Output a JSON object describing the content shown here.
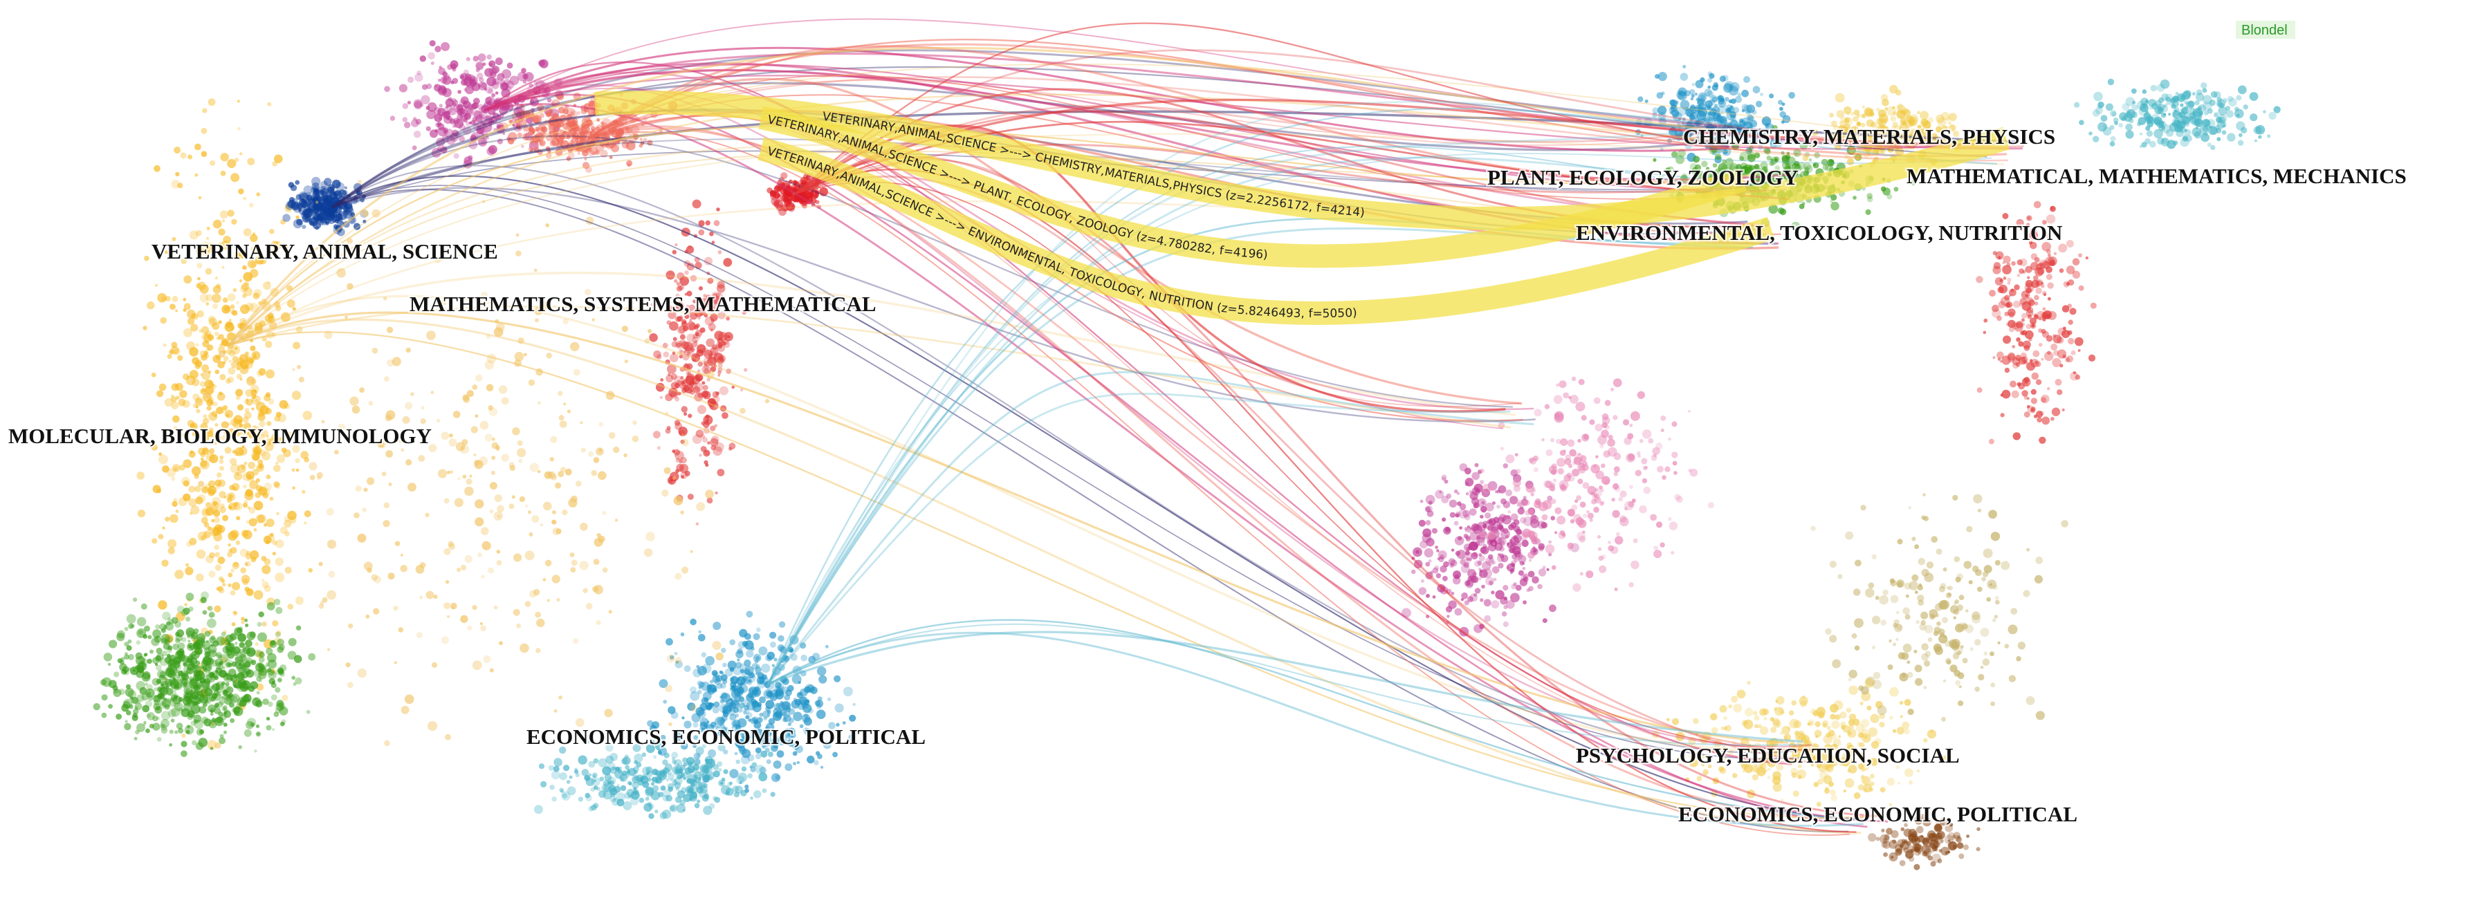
{
  "legend_tag": "Blondel",
  "left_labels": [
    "VETERINARY, ANIMAL, SCIENCE",
    "MATHEMATICS, SYSTEMS, MATHEMATICAL",
    "MOLECULAR, BIOLOGY, IMMUNOLOGY",
    "ECONOMICS, ECONOMIC, POLITICAL"
  ],
  "right_labels": [
    "CHEMISTRY, MATERIALS, PHYSICS",
    "PLANT, ECOLOGY, ZOOLOGY",
    "MATHEMATICAL, MATHEMATICS, MECHANICS",
    "ENVIRONMENTAL, TOXICOLOGY, NUTRITION",
    "PSYCHOLOGY, EDUCATION, SOCIAL",
    "ECONOMICS, ECONOMIC, POLITICAL"
  ],
  "link_labels": [
    "VETERINARY,ANIMAL,SCIENCE >---> CHEMISTRY,MATERIALS,PHYSICS (z=2.2256172, f=4214)",
    "VETERINARY,ANIMAL,SCIENCE >---> PLANT, ECOLOGY, ZOOLOGY (z=4.780282, f=4196)",
    "VETERINARY,ANIMAL,SCIENCE >---> ENVIRONMENTAL, TOXICOLOGY, NUTRITION (z=5.8246493, f=5050)"
  ]
}
